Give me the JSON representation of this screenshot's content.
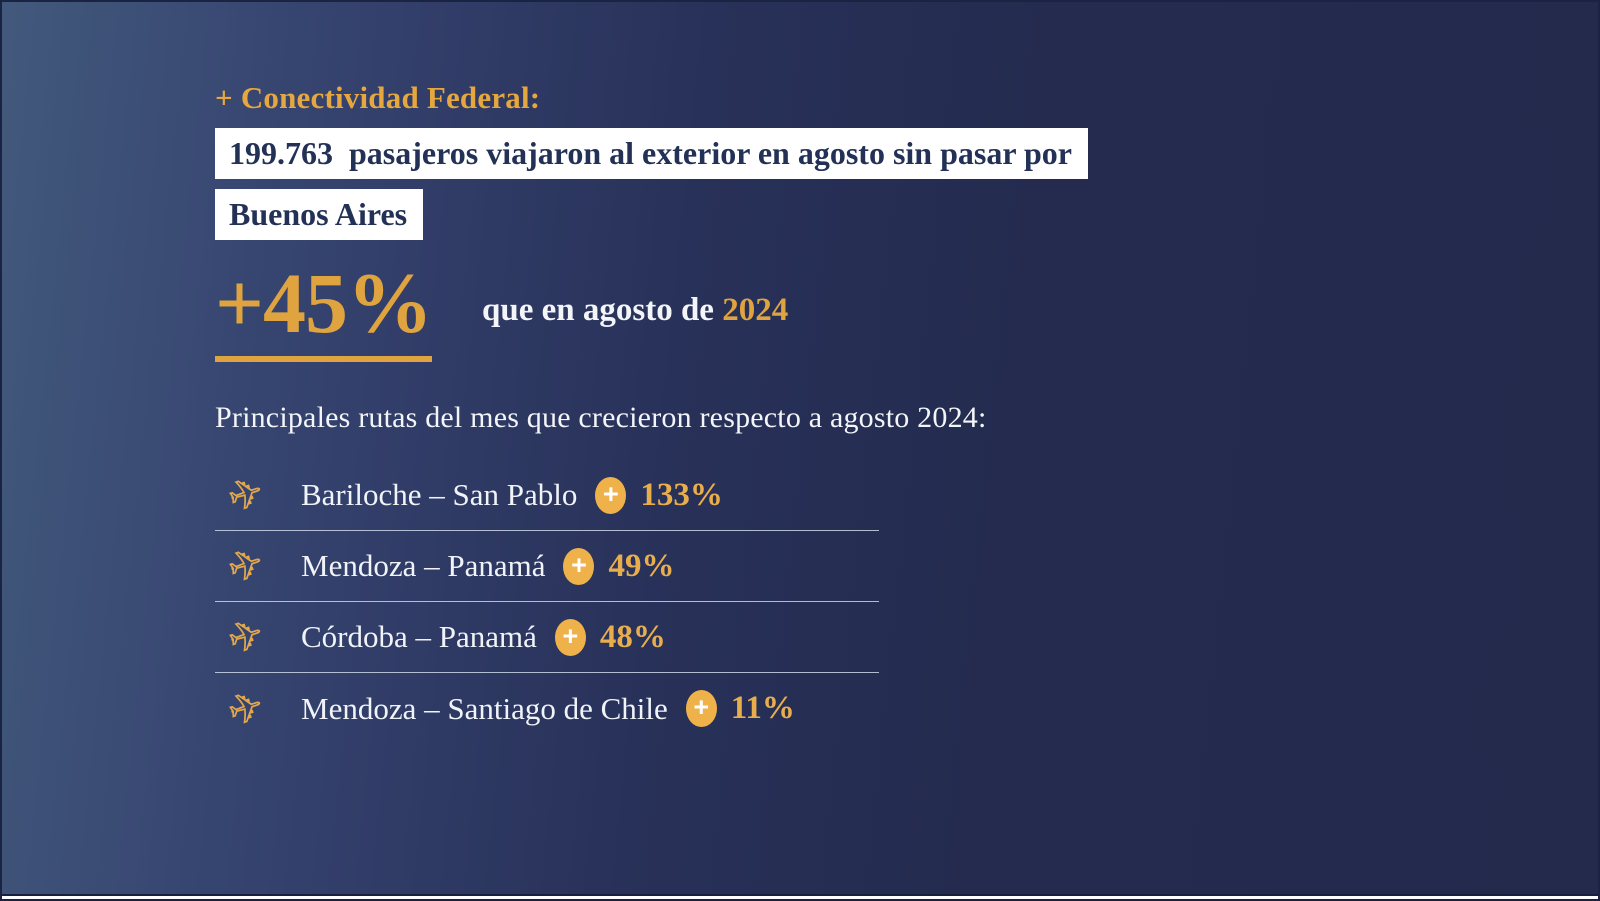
{
  "title": "+ Conectividad Federal:",
  "headline": {
    "line1": "199.763  pasajeros viajaron al exterior en agosto sin pasar por",
    "line2": "Buenos Aires"
  },
  "stat": {
    "value": "+45%",
    "comparison_prefix": "que en agosto de ",
    "comparison_year": "2024"
  },
  "routes_heading": "Principales rutas del mes que crecieron respecto a agosto 2024:",
  "routes": [
    {
      "route": "Bariloche – San Pablo",
      "growth": "133%"
    },
    {
      "route": "Mendoza – Panamá",
      "growth": "49%"
    },
    {
      "route": "Córdoba – Panamá",
      "growth": "48%"
    },
    {
      "route": "Mendoza – Santiago de Chile",
      "growth": "11%"
    }
  ],
  "badge": {
    "plus": "+"
  },
  "icons": {
    "route_icon": "plane-takeoff-icon"
  },
  "colors": {
    "gold": "#DFA43F",
    "badge_gold": "#EFB24A",
    "background_dark": "#232A4C",
    "background_light": "#42597C",
    "headline_bg": "#FFFFFF",
    "headline_text": "#233157",
    "body_text": "#F3F5F9"
  }
}
